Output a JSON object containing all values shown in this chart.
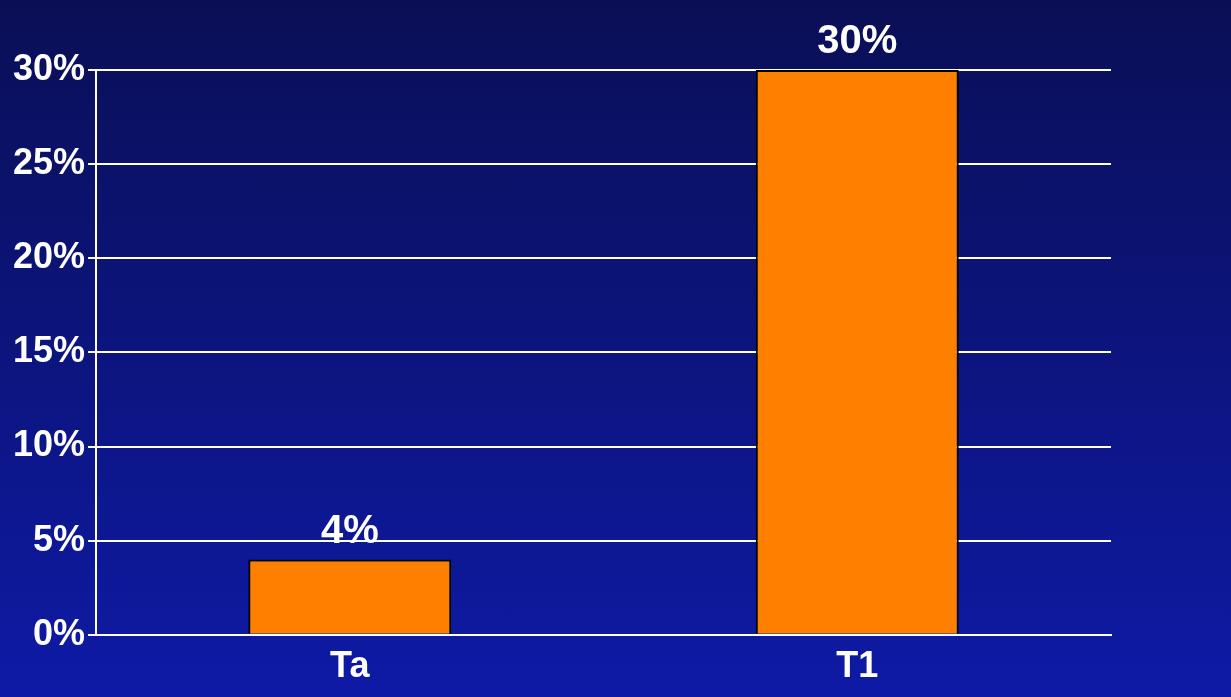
{
  "chart_data": {
    "type": "bar",
    "categories": [
      "Ta",
      "T1"
    ],
    "values": [
      4,
      30
    ],
    "color": "#ff8000",
    "value_labels": [
      "4%",
      "30%"
    ],
    "ylim": [
      0,
      30
    ],
    "yticks": [
      {
        "value": 0,
        "label": "0%"
      },
      {
        "value": 5,
        "label": "5%"
      },
      {
        "value": 10,
        "label": "10%"
      },
      {
        "value": 15,
        "label": "15%"
      },
      {
        "value": 20,
        "label": "20%"
      },
      {
        "value": 25,
        "label": "25%"
      },
      {
        "value": 30,
        "label": "30%"
      }
    ],
    "grid": "y",
    "legend": false
  }
}
